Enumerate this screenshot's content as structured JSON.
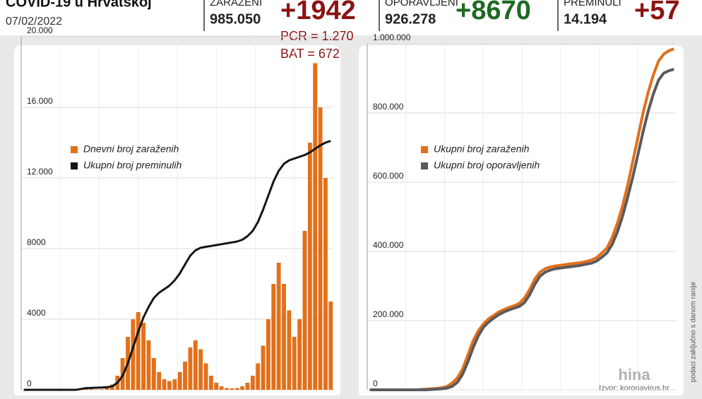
{
  "header": {
    "title": "COVID-19 u Hrvatskoj",
    "date": "07/02/2022"
  },
  "stats": [
    {
      "label": "ZARAŽENI",
      "total": "985.050",
      "change": "+1942",
      "color": "#8b1414"
    },
    {
      "label": "OPORAVLJENI",
      "total": "926.278",
      "change": "+8670",
      "color": "#1f6a22"
    },
    {
      "label": "PREMINULI",
      "total": "14.194",
      "change": "+57",
      "color": "#8b1414"
    }
  ],
  "notes": [
    "PCR = 1.270",
    "BAT = 672"
  ],
  "side_note": "podaci zaključno s danom ranije",
  "source": "Izvor: koronavirus.hr",
  "logo": "hina",
  "chart_data": [
    {
      "type": "bar",
      "ylim": [
        0,
        20000
      ],
      "yticks": [
        0,
        4000,
        8000,
        {
          "value": 12000,
          "label": "12.000"
        },
        {
          "value": 16000,
          "label": "16.000"
        },
        {
          "value": 20000,
          "label": "20.000"
        }
      ],
      "grid": true,
      "series": [
        {
          "name": "Dnevni broj zaraženih",
          "type": "bar",
          "color": "#e2701a",
          "values": [
            0,
            0,
            0,
            0,
            0,
            0,
            0,
            0,
            0,
            0,
            0,
            20,
            50,
            40,
            20,
            30,
            100,
            300,
            800,
            1800,
            3000,
            4000,
            4400,
            3800,
            2800,
            1800,
            1000,
            600,
            500,
            600,
            1000,
            1600,
            2400,
            2800,
            2300,
            1500,
            800,
            400,
            200,
            100,
            80,
            100,
            200,
            400,
            800,
            1500,
            2500,
            4000,
            6000,
            7200,
            6000,
            4500,
            3000,
            4000,
            9000,
            14000,
            18500,
            16000,
            12000,
            5000
          ]
        },
        {
          "name": "Ukupni broj preminulih",
          "type": "line",
          "color": "#151515",
          "values": [
            0,
            0,
            0,
            0,
            0,
            0,
            0,
            0,
            0,
            0,
            0,
            50,
            100,
            110,
            120,
            130,
            150,
            200,
            400,
            800,
            1500,
            2400,
            3300,
            4100,
            4700,
            5200,
            5500,
            5700,
            5900,
            6200,
            6600,
            7100,
            7600,
            7900,
            8050,
            8100,
            8150,
            8200,
            8250,
            8300,
            8350,
            8400,
            8500,
            8700,
            9000,
            9500,
            10200,
            11000,
            11800,
            12400,
            12800,
            13000,
            13100,
            13200,
            13300,
            13450,
            13650,
            13850,
            14000,
            14100
          ]
        }
      ]
    },
    {
      "type": "line",
      "ylim": [
        0,
        1000000
      ],
      "yticks": [
        0,
        {
          "value": 200000,
          "label": "200.000"
        },
        {
          "value": 400000,
          "label": "400.000"
        },
        {
          "value": 600000,
          "label": "600.000"
        },
        {
          "value": 800000,
          "label": "800.000"
        },
        {
          "value": 1000000,
          "label": "1.000.000"
        }
      ],
      "grid": true,
      "series": [
        {
          "name": "Ukupni broj zaraženih",
          "type": "line",
          "color": "#e2701a",
          "values": [
            0,
            0,
            0,
            0,
            0,
            0,
            0,
            0,
            0,
            0,
            1000,
            2000,
            3000,
            4000,
            6000,
            10000,
            20000,
            35000,
            60000,
            100000,
            140000,
            170000,
            190000,
            205000,
            215000,
            225000,
            232000,
            238000,
            243000,
            250000,
            265000,
            290000,
            320000,
            340000,
            350000,
            355000,
            358000,
            360000,
            362000,
            364000,
            366000,
            368000,
            371000,
            375000,
            382000,
            395000,
            410000,
            440000,
            480000,
            530000,
            590000,
            660000,
            730000,
            800000,
            860000,
            910000,
            950000,
            970000,
            980000,
            985050
          ]
        },
        {
          "name": "Ukupni broj oporavljenih",
          "type": "line",
          "color": "#5a5a5e",
          "values": [
            0,
            0,
            0,
            0,
            0,
            0,
            0,
            0,
            0,
            0,
            0,
            0,
            1000,
            2000,
            3000,
            5000,
            10000,
            22000,
            45000,
            80000,
            120000,
            155000,
            180000,
            195000,
            207000,
            217000,
            225000,
            231000,
            236000,
            241000,
            252000,
            275000,
            305000,
            328000,
            340000,
            346000,
            350000,
            352000,
            354000,
            356000,
            358000,
            360000,
            363000,
            366000,
            372000,
            383000,
            396000,
            420000,
            455000,
            500000,
            555000,
            615000,
            680000,
            745000,
            805000,
            855000,
            895000,
            915000,
            922000,
            926278
          ]
        }
      ]
    }
  ]
}
